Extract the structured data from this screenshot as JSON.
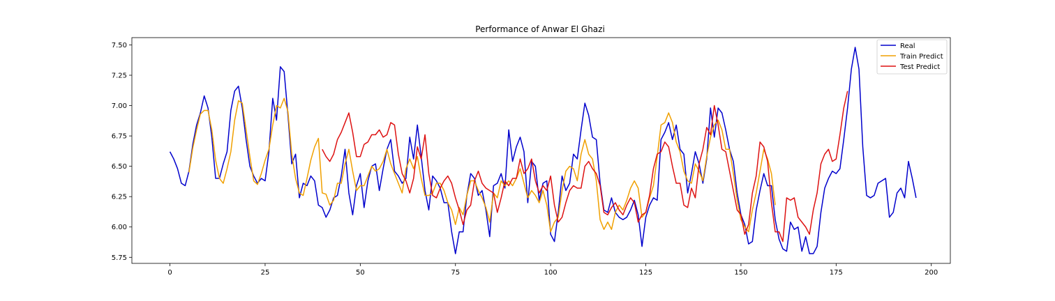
{
  "chart_data": {
    "type": "line",
    "title": "Performance of Anwar El Ghazi",
    "xlabel": "",
    "ylabel": "",
    "xlim": [
      -10,
      205
    ],
    "ylim": [
      5.7,
      7.56
    ],
    "xticks": [
      0,
      25,
      50,
      75,
      100,
      125,
      150,
      175,
      200
    ],
    "yticks": [
      5.75,
      6.0,
      6.25,
      6.5,
      6.75,
      7.0,
      7.25,
      7.5
    ],
    "xtick_labels": [
      "0",
      "25",
      "50",
      "75",
      "100",
      "125",
      "150",
      "175",
      "200"
    ],
    "ytick_labels": [
      "5.75",
      "6.00",
      "6.25",
      "6.50",
      "6.75",
      "7.00",
      "7.25",
      "7.50"
    ],
    "grid": false,
    "legend_position": "top-right",
    "series": [
      {
        "name": "Real",
        "color": "#0000cc",
        "x_start": 0,
        "values": [
          6.62,
          6.56,
          6.48,
          6.36,
          6.34,
          6.46,
          6.68,
          6.84,
          6.94,
          7.08,
          6.98,
          6.74,
          6.4,
          6.4,
          6.52,
          6.62,
          6.96,
          7.12,
          7.16,
          6.98,
          6.72,
          6.5,
          6.42,
          6.36,
          6.4,
          6.38,
          6.62,
          7.06,
          6.88,
          7.32,
          7.28,
          6.92,
          6.52,
          6.6,
          6.24,
          6.36,
          6.34,
          6.42,
          6.38,
          6.18,
          6.16,
          6.08,
          6.14,
          6.24,
          6.26,
          6.42,
          6.64,
          6.28,
          6.1,
          6.34,
          6.44,
          6.16,
          6.38,
          6.5,
          6.52,
          6.3,
          6.48,
          6.64,
          6.72,
          6.46,
          6.42,
          6.36,
          6.4,
          6.74,
          6.56,
          6.84,
          6.58,
          6.3,
          6.14,
          6.42,
          6.38,
          6.32,
          6.2,
          6.2,
          5.96,
          5.78,
          5.96,
          5.96,
          6.26,
          6.44,
          6.4,
          6.26,
          6.3,
          6.14,
          5.92,
          6.34,
          6.36,
          6.44,
          6.32,
          6.8,
          6.54,
          6.66,
          6.74,
          6.62,
          6.2,
          6.54,
          6.5,
          6.22,
          6.36,
          6.38,
          5.94,
          5.88,
          6.12,
          6.42,
          6.3,
          6.36,
          6.6,
          6.56,
          6.8,
          7.02,
          6.92,
          6.74,
          6.72,
          6.36,
          6.14,
          6.12,
          6.24,
          6.12,
          6.08,
          6.06,
          6.08,
          6.14,
          6.22,
          6.1,
          5.84,
          6.08,
          6.18,
          6.24,
          6.22,
          6.72,
          6.78,
          6.86,
          6.72,
          6.84,
          6.64,
          6.6,
          6.28,
          6.44,
          6.62,
          6.52,
          6.36,
          6.56,
          6.98,
          6.74,
          6.98,
          6.94,
          6.8,
          6.64,
          6.54,
          6.28,
          6.1,
          6.02,
          5.86,
          5.88,
          6.14,
          6.3,
          6.44,
          6.34,
          6.34,
          6.06,
          5.9,
          5.82,
          5.8,
          6.04,
          5.98,
          6.0,
          5.8,
          5.92,
          5.78,
          5.78,
          5.84,
          6.12,
          6.32,
          6.4,
          6.46,
          6.44,
          6.48,
          6.72,
          6.98,
          7.3,
          7.48,
          7.3,
          6.66,
          6.26,
          6.24,
          6.26,
          6.36,
          6.38,
          6.4,
          6.08,
          6.12,
          6.28,
          6.32,
          6.24,
          6.54,
          6.4,
          6.24
        ]
      },
      {
        "name": "Train Predict",
        "color": "#f0a000",
        "x_start": 5,
        "values": [
          6.45,
          6.65,
          6.8,
          6.93,
          6.96,
          6.96,
          6.8,
          6.55,
          6.4,
          6.36,
          6.48,
          6.62,
          6.88,
          7.04,
          7.02,
          6.8,
          6.58,
          6.38,
          6.35,
          6.44,
          6.55,
          6.64,
          6.84,
          7.0,
          6.98,
          7.06,
          6.95,
          6.6,
          6.4,
          6.28,
          6.26,
          6.4,
          6.55,
          6.66,
          6.73,
          6.28,
          6.27,
          6.18,
          6.22,
          6.36,
          6.36,
          6.52,
          6.64,
          6.46,
          6.3,
          6.34,
          6.34,
          6.42,
          6.5,
          6.46,
          6.48,
          6.54,
          6.64,
          6.52,
          6.44,
          6.36,
          6.28,
          6.48,
          6.56,
          6.48,
          6.58,
          6.4,
          6.26,
          6.26,
          6.28,
          6.36,
          6.36,
          6.3,
          6.2,
          6.14,
          6.02,
          6.16,
          6.1,
          6.26,
          6.38,
          6.38,
          6.3,
          6.24,
          6.16,
          6.04,
          6.28,
          6.24,
          6.38,
          6.34,
          6.38,
          6.34,
          6.4,
          6.48,
          6.36,
          6.24,
          6.3,
          6.26,
          6.2,
          6.3,
          6.18,
          5.96,
          6.04,
          6.08,
          6.3,
          6.46,
          6.5,
          6.48,
          6.38,
          6.6,
          6.72,
          6.6,
          6.56,
          6.38,
          6.06,
          5.98,
          6.04,
          5.98,
          6.12,
          6.18,
          6.14,
          6.22,
          6.32,
          6.38,
          6.32,
          6.08,
          6.12,
          6.24,
          6.34,
          6.58,
          6.84,
          6.86,
          6.94,
          6.86,
          6.7,
          6.62,
          6.46,
          6.38,
          6.36,
          6.52,
          6.46,
          6.38,
          6.58,
          6.74,
          6.84,
          6.88,
          6.8,
          6.64,
          6.64,
          6.44,
          6.22,
          6.06,
          6.0,
          5.96,
          6.14,
          6.28,
          6.46,
          6.64,
          6.56,
          6.44,
          6.18
        ]
      },
      {
        "name": "Test Predict",
        "color": "#dd1111",
        "x_start": 40,
        "values": [
          6.64,
          6.58,
          6.54,
          6.6,
          6.72,
          6.78,
          6.86,
          6.94,
          6.78,
          6.58,
          6.58,
          6.68,
          6.7,
          6.76,
          6.76,
          6.8,
          6.74,
          6.76,
          6.86,
          6.84,
          6.6,
          6.44,
          6.38,
          6.28,
          6.4,
          6.66,
          6.56,
          6.76,
          6.44,
          6.26,
          6.24,
          6.32,
          6.38,
          6.42,
          6.36,
          6.24,
          6.14,
          6.02,
          6.14,
          6.18,
          6.38,
          6.46,
          6.36,
          6.32,
          6.3,
          6.28,
          6.12,
          6.24,
          6.38,
          6.34,
          6.4,
          6.4,
          6.56,
          6.44,
          6.48,
          6.56,
          6.38,
          6.28,
          6.34,
          6.3,
          6.42,
          6.18,
          6.04,
          6.08,
          6.2,
          6.3,
          6.34,
          6.32,
          6.32,
          6.5,
          6.54,
          6.48,
          6.44,
          6.34,
          6.12,
          6.1,
          6.16,
          6.2,
          6.14,
          6.1,
          6.18,
          6.24,
          6.2,
          6.04,
          6.1,
          6.12,
          6.26,
          6.48,
          6.6,
          6.62,
          6.7,
          6.66,
          6.5,
          6.36,
          6.36,
          6.18,
          6.16,
          6.32,
          6.24,
          6.52,
          6.64,
          6.82,
          6.76,
          7.0,
          6.84,
          6.64,
          6.62,
          6.46,
          6.3,
          6.14,
          6.1,
          5.94,
          6.02,
          6.28,
          6.42,
          6.7,
          6.66,
          6.54,
          6.2,
          5.96,
          5.96,
          5.88,
          6.24,
          6.22,
          6.24,
          6.08,
          6.04,
          6.0,
          5.94,
          6.14,
          6.28,
          6.52,
          6.6,
          6.64,
          6.54,
          6.56,
          6.76,
          6.98,
          7.12
        ]
      }
    ]
  }
}
